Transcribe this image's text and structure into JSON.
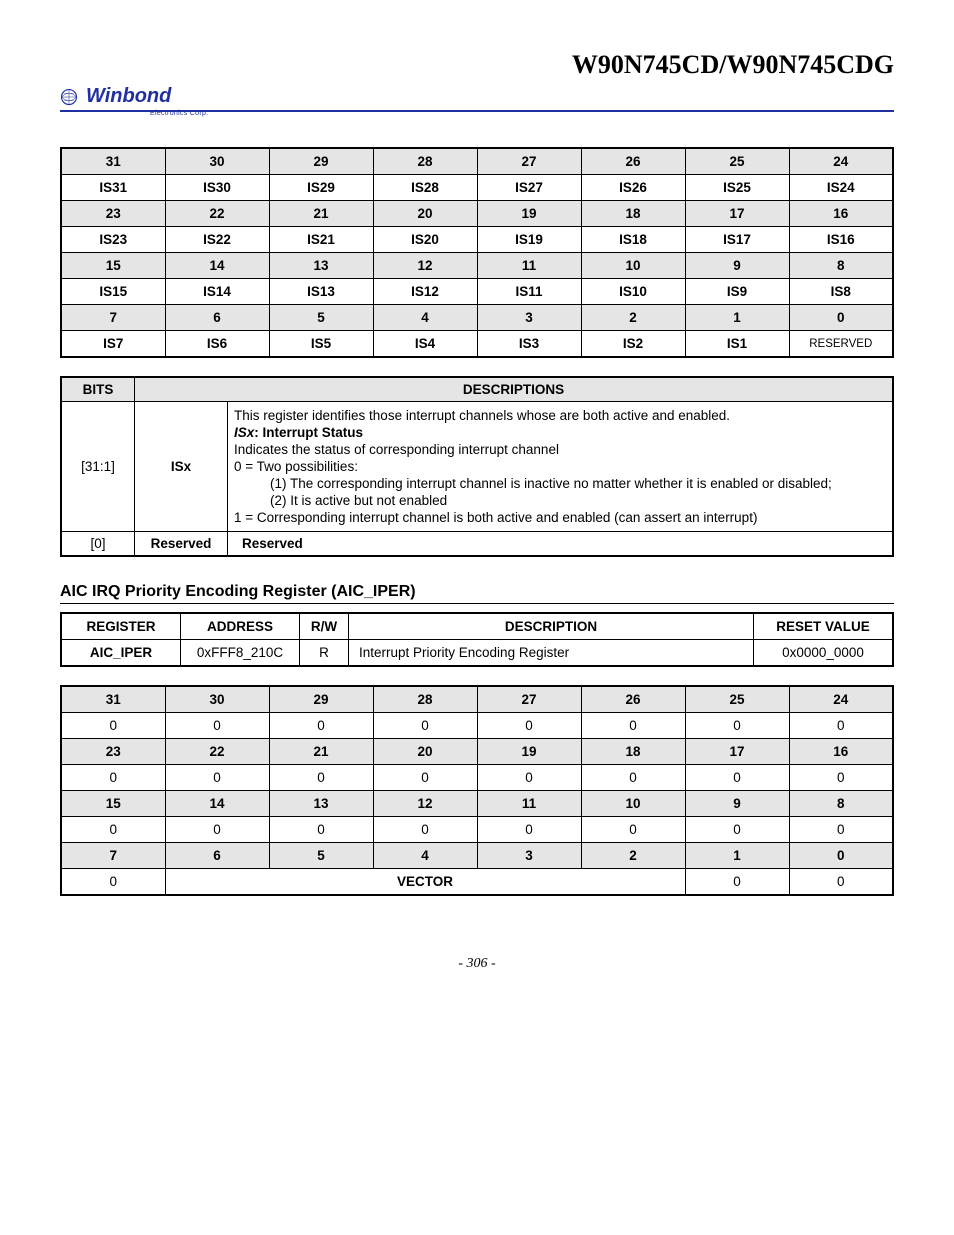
{
  "doc": {
    "title": "W90N745CD/W90N745CDG",
    "page_number": "- 306 -"
  },
  "logo": {
    "brand": "Winbond",
    "tagline": "Electronics Corp.",
    "color": "#2030a0"
  },
  "bit_table_1": {
    "rows": [
      [
        "31",
        "30",
        "29",
        "28",
        "27",
        "26",
        "25",
        "24"
      ],
      [
        "IS31",
        "IS30",
        "IS29",
        "IS28",
        "IS27",
        "IS26",
        "IS25",
        "IS24"
      ],
      [
        "23",
        "22",
        "21",
        "20",
        "19",
        "18",
        "17",
        "16"
      ],
      [
        "IS23",
        "IS22",
        "IS21",
        "IS20",
        "IS19",
        "IS18",
        "IS17",
        "IS16"
      ],
      [
        "15",
        "14",
        "13",
        "12",
        "11",
        "10",
        "9",
        "8"
      ],
      [
        "IS15",
        "IS14",
        "IS13",
        "IS12",
        "IS11",
        "IS10",
        "IS9",
        "IS8"
      ],
      [
        "7",
        "6",
        "5",
        "4",
        "3",
        "2",
        "1",
        "0"
      ],
      [
        "IS7",
        "IS6",
        "IS5",
        "IS4",
        "IS3",
        "IS2",
        "IS1",
        "RESERVED"
      ]
    ]
  },
  "desc_table": {
    "header": {
      "bits": "BITS",
      "descriptions": "DESCRIPTIONS"
    },
    "rows": [
      {
        "bits": "[31:1]",
        "name": "ISx",
        "body": {
          "intro": "This register identifies those interrupt channels whose are both active and enabled.",
          "label": "ISx: Interrupt Status",
          "l1": "Indicates the status of corresponding interrupt channel",
          "l2": "0 = Two possibilities:",
          "s1": "(1) The corresponding interrupt channel is inactive no matter whether it is enabled or disabled;",
          "s2": "(2) It is active but not enabled",
          "l3": "1 = Corresponding interrupt channel is both active and enabled (can assert an interrupt)"
        }
      },
      {
        "bits": "[0]",
        "name": "Reserved",
        "body": {
          "intro": "Reserved"
        }
      }
    ]
  },
  "section2": {
    "title": "AIC IRQ Priority Encoding Register (AIC_IPER)"
  },
  "reg_table": {
    "header": {
      "register": "REGISTER",
      "address": "ADDRESS",
      "rw": "R/W",
      "description": "DESCRIPTION",
      "reset": "RESET VALUE"
    },
    "row": {
      "register": "AIC_IPER",
      "address": "0xFFF8_210C",
      "rw": "R",
      "description": "Interrupt Priority Encoding Register",
      "reset": "0x0000_0000"
    }
  },
  "bit_table_2": {
    "rows": [
      [
        "31",
        "30",
        "29",
        "28",
        "27",
        "26",
        "25",
        "24"
      ],
      [
        "0",
        "0",
        "0",
        "0",
        "0",
        "0",
        "0",
        "0"
      ],
      [
        "23",
        "22",
        "21",
        "20",
        "19",
        "18",
        "17",
        "16"
      ],
      [
        "0",
        "0",
        "0",
        "0",
        "0",
        "0",
        "0",
        "0"
      ],
      [
        "15",
        "14",
        "13",
        "12",
        "11",
        "10",
        "9",
        "8"
      ],
      [
        "0",
        "0",
        "0",
        "0",
        "0",
        "0",
        "0",
        "0"
      ],
      [
        "7",
        "6",
        "5",
        "4",
        "3",
        "2",
        "1",
        "0"
      ]
    ],
    "last_row": {
      "c0": "0",
      "vector": "VECTOR",
      "c6": "0",
      "c7": "0"
    }
  }
}
